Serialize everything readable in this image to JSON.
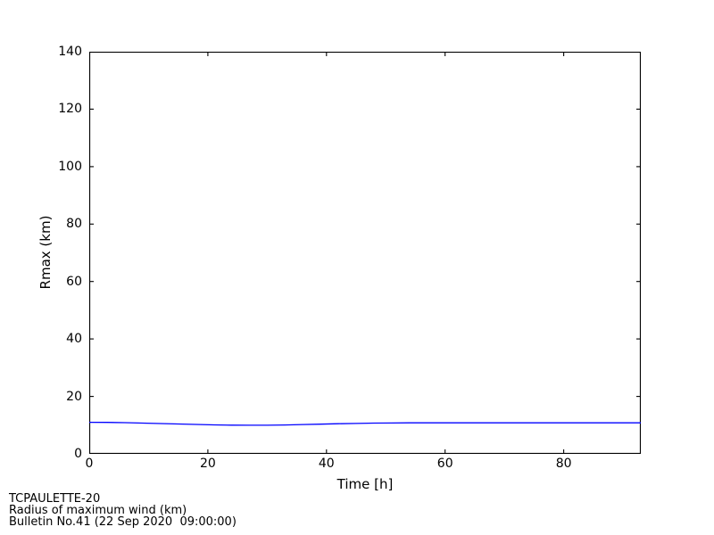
{
  "chart_data": {
    "type": "line",
    "title": "",
    "xlabel": "Time [h]",
    "ylabel": "Rmax (km)",
    "xlim": [
      0,
      93
    ],
    "ylim": [
      0,
      140
    ],
    "xticks": [
      0,
      20,
      40,
      60,
      80
    ],
    "yticks": [
      0,
      20,
      40,
      60,
      80,
      100,
      120,
      140
    ],
    "grid": false,
    "legend": "none",
    "line_color": "#0000ff",
    "axis_color": "#000000",
    "background_color": "#ffffff",
    "series": [
      {
        "name": "Radius of maximum wind",
        "points": [
          [
            0,
            11.0
          ],
          [
            3,
            10.95
          ],
          [
            6,
            10.85
          ],
          [
            9,
            10.7
          ],
          [
            12,
            10.55
          ],
          [
            15,
            10.4
          ],
          [
            18,
            10.25
          ],
          [
            21,
            10.1
          ],
          [
            24,
            10.0
          ],
          [
            27,
            9.95
          ],
          [
            30,
            9.95
          ],
          [
            33,
            10.05
          ],
          [
            36,
            10.2
          ],
          [
            39,
            10.35
          ],
          [
            42,
            10.5
          ],
          [
            45,
            10.6
          ],
          [
            48,
            10.7
          ],
          [
            51,
            10.75
          ],
          [
            54,
            10.8
          ],
          [
            60,
            10.8
          ],
          [
            66,
            10.8
          ],
          [
            72,
            10.8
          ],
          [
            78,
            10.8
          ],
          [
            84,
            10.8
          ],
          [
            90,
            10.8
          ],
          [
            93,
            10.8
          ]
        ]
      }
    ]
  },
  "footer": {
    "line1": "TCPAULETTE-20",
    "line2": "Radius of maximum wind (km)",
    "line3": "Bulletin No.41 (22 Sep 2020  09:00:00)"
  }
}
